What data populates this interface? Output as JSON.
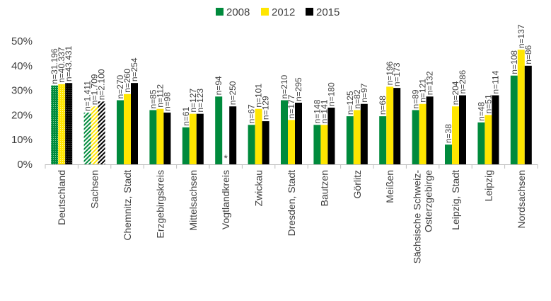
{
  "chart_data": {
    "type": "bar",
    "yticks": [
      "0%",
      "10%",
      "20%",
      "30%",
      "40%",
      "50%"
    ],
    "ylim": [
      0,
      50
    ],
    "categories": [
      "Deutschland",
      "Sachsen",
      "Chemnitz, Stadt",
      "Erzgebirgskreis",
      "Mittelsachsen",
      "Vogtlandkreis",
      "Zwickau",
      "Dresden, Stadt",
      "Bautzen",
      "Görlitz",
      "Meißen",
      [
        "Sächsische Schweiz-",
        "Osterzgebirge"
      ],
      "Leipzig, Stadt",
      "Leipzig",
      "Nordsachsen"
    ],
    "series": [
      {
        "name": "2008",
        "color": "#008a3c",
        "values": [
          32,
          21,
          26,
          22,
          15,
          27.5,
          16,
          26,
          16,
          19.5,
          19.5,
          22,
          8,
          17,
          36
        ],
        "n": [
          "n=31.196",
          "n=1.411",
          "n=270",
          "n=85",
          "n=61",
          "n=94",
          "n=67",
          "n=210",
          "n=148",
          "n=125",
          "n=68",
          "n=89",
          "n=38",
          "n=48",
          "n=108"
        ]
      },
      {
        "name": "2012",
        "color": "#ffe600",
        "values": [
          32.5,
          23.5,
          28.5,
          22.5,
          20.5,
          null,
          22.5,
          18,
          16,
          22,
          31.5,
          24.5,
          23.5,
          20,
          46.5
        ],
        "n": [
          "n=40.337",
          "n=1.709",
          "n=260",
          "n=112",
          "n=127",
          "",
          "n=101",
          "n=177",
          "n=141",
          "n=82",
          "n=196",
          "n=121",
          "n=204",
          "n=51",
          "n=137"
        ]
      },
      {
        "name": "2015",
        "color": "#000000",
        "values": [
          33,
          25.5,
          33,
          21,
          20.5,
          23.5,
          17.5,
          25,
          23,
          24.5,
          31,
          27.5,
          28,
          28,
          40
        ],
        "n": [
          "n=43.431",
          "n=2.100",
          "n=254",
          "n=98",
          "n=123",
          "n=250",
          "n=129",
          "n=295",
          "n=180",
          "n=97",
          "n=173",
          "n=132",
          "n=286",
          "n=114",
          "n=86"
        ]
      }
    ],
    "missing_marker": "*"
  }
}
